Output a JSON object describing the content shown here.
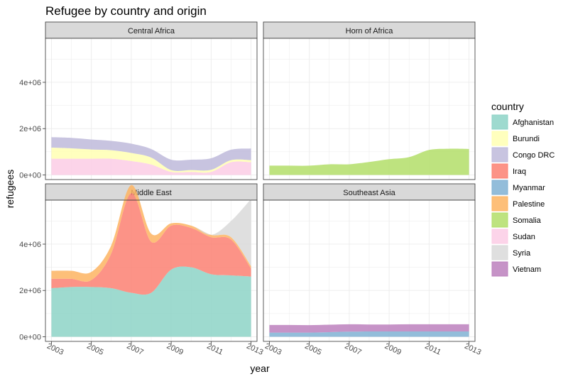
{
  "chart_data": {
    "type": "area",
    "title": "Refugee by country and origin",
    "xlabel": "year",
    "ylabel": "refugees",
    "x_ticks": [
      2003,
      2005,
      2007,
      2009,
      2011,
      2013
    ],
    "y_ticks": [
      0,
      2000000,
      4000000
    ],
    "y_tick_labels": [
      "0e+00",
      "2e+06",
      "4e+06"
    ],
    "xlim": [
      2002.7,
      2013.3
    ],
    "ylim": [
      -200000,
      5900000
    ],
    "grid": true,
    "legend": {
      "title": "country",
      "position": "right",
      "entries": [
        {
          "name": "Afghanistan",
          "color": "#8dd3c7"
        },
        {
          "name": "Burundi",
          "color": "#ffffb3"
        },
        {
          "name": "Congo DRC",
          "color": "#bebada"
        },
        {
          "name": "Iraq",
          "color": "#fb8072"
        },
        {
          "name": "Myanmar",
          "color": "#80b1d3"
        },
        {
          "name": "Palestine",
          "color": "#fdb462"
        },
        {
          "name": "Somalia",
          "color": "#b3de69"
        },
        {
          "name": "Sudan",
          "color": "#fccde5"
        },
        {
          "name": "Syria",
          "color": "#d9d9d9"
        },
        {
          "name": "Vietnam",
          "color": "#bc80bd"
        }
      ]
    },
    "x": [
      2003,
      2004,
      2005,
      2006,
      2007,
      2008,
      2009,
      2010,
      2011,
      2012,
      2013
    ],
    "panels": [
      {
        "region": "Central Africa",
        "series": [
          {
            "name": "Sudan",
            "values": [
              700000,
              700000,
              700000,
              700000,
              600000,
              450000,
              130000,
              130000,
              130000,
              550000,
              550000
            ]
          },
          {
            "name": "Burundi",
            "values": [
              480000,
              450000,
              400000,
              370000,
              350000,
              300000,
              80000,
              80000,
              90000,
              90000,
              90000
            ]
          },
          {
            "name": "Congo DRC",
            "values": [
              450000,
              450000,
              430000,
              400000,
              400000,
              370000,
              450000,
              450000,
              500000,
              450000,
              500000
            ]
          }
        ]
      },
      {
        "region": "Horn of Africa",
        "series": [
          {
            "name": "Somalia",
            "values": [
              400000,
              400000,
              400000,
              460000,
              460000,
              560000,
              680000,
              770000,
              1080000,
              1130000,
              1120000
            ]
          }
        ]
      },
      {
        "region": "Middle East",
        "series": [
          {
            "name": "Afghanistan",
            "values": [
              2100000,
              2150000,
              2150000,
              2100000,
              1900000,
              1900000,
              2900000,
              3000000,
              2700000,
              2650000,
              2600000
            ]
          },
          {
            "name": "Iraq",
            "values": [
              400000,
              350000,
              300000,
              1500000,
              4300000,
              2200000,
              1900000,
              1700000,
              1600000,
              1550000,
              350000
            ]
          },
          {
            "name": "Palestine",
            "values": [
              350000,
              350000,
              350000,
              350000,
              350000,
              350000,
              100000,
              100000,
              100000,
              100000,
              100000
            ]
          },
          {
            "name": "Syria",
            "values": [
              0,
              0,
              0,
              0,
              0,
              0,
              0,
              0,
              0,
              700000,
              2900000
            ]
          }
        ]
      },
      {
        "region": "Southeast Asia",
        "series": [
          {
            "name": "Myanmar",
            "values": [
              180000,
              180000,
              180000,
              200000,
              220000,
              230000,
              230000,
              230000,
              230000,
              230000,
              230000
            ]
          },
          {
            "name": "Vietnam",
            "values": [
              330000,
              330000,
              320000,
              320000,
              320000,
              300000,
              300000,
              310000,
              310000,
              310000,
              310000
            ]
          }
        ]
      }
    ]
  }
}
